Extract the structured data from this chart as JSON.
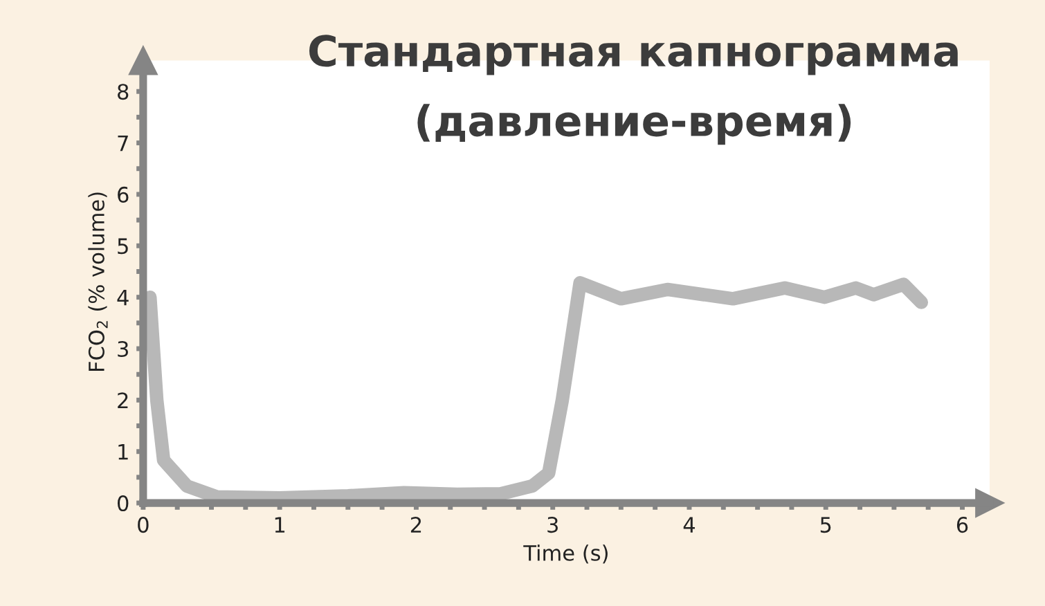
{
  "chart_data": {
    "type": "line",
    "title": "Стандартная капнограмма\n(давление-время)",
    "xlabel": "Time (s)",
    "ylabel": "FCO$_{2}$ (% volume)",
    "xlim": [
      0,
      6.2
    ],
    "ylim": [
      0,
      8.6
    ],
    "xticks": [
      0,
      {
        "value": 0.25,
        "label": null
      },
      {
        "value": 0.5,
        "label": null
      },
      {
        "value": 0.75,
        "label": null
      },
      1,
      {
        "value": 1.25,
        "label": null
      },
      {
        "value": 1.5,
        "label": null
      },
      {
        "value": 1.75,
        "label": null
      },
      2,
      {
        "value": 2.25,
        "label": null
      },
      {
        "value": 2.5,
        "label": null
      },
      {
        "value": 2.75,
        "label": null
      },
      3,
      {
        "value": 3.25,
        "label": null
      },
      {
        "value": 3.5,
        "label": null
      },
      {
        "value": 3.75,
        "label": null
      },
      4,
      {
        "value": 4.25,
        "label": null
      },
      {
        "value": 4.5,
        "label": null
      },
      {
        "value": 4.75,
        "label": null
      },
      5,
      {
        "value": 5.25,
        "label": null
      },
      {
        "value": 5.5,
        "label": null
      },
      {
        "value": 5.75,
        "label": null
      },
      6
    ],
    "yticks": [
      0,
      {
        "value": 0.5,
        "label": null
      },
      1,
      {
        "value": 1.5,
        "label": null
      },
      2,
      {
        "value": 2.5,
        "label": null
      },
      3,
      {
        "value": 3.5,
        "label": null
      },
      4,
      {
        "value": 4.5,
        "label": null
      },
      5,
      {
        "value": 5.5,
        "label": null
      },
      6,
      {
        "value": 6.5,
        "label": null
      },
      7,
      {
        "value": 7.5,
        "label": null
      },
      8
    ],
    "grid": false,
    "marker": "none",
    "line_style": "solid",
    "series": [
      {
        "color": "#b8b8b8",
        "x": [
          0.05,
          0.1,
          0.15,
          0.32,
          0.54,
          1.0,
          1.5,
          1.91,
          2.3,
          2.62,
          2.85,
          2.97,
          3.07,
          3.2,
          3.5,
          3.84,
          4.32,
          4.7,
          4.99,
          5.22,
          5.35,
          5.57,
          5.7
        ],
        "values": [
          4.0,
          2.0,
          0.83,
          0.33,
          0.12,
          0.1,
          0.14,
          0.2,
          0.17,
          0.18,
          0.33,
          0.58,
          2.0,
          4.28,
          3.97,
          4.15,
          3.97,
          4.18,
          4.0,
          4.18,
          4.05,
          4.25,
          3.9
        ]
      }
    ]
  }
}
